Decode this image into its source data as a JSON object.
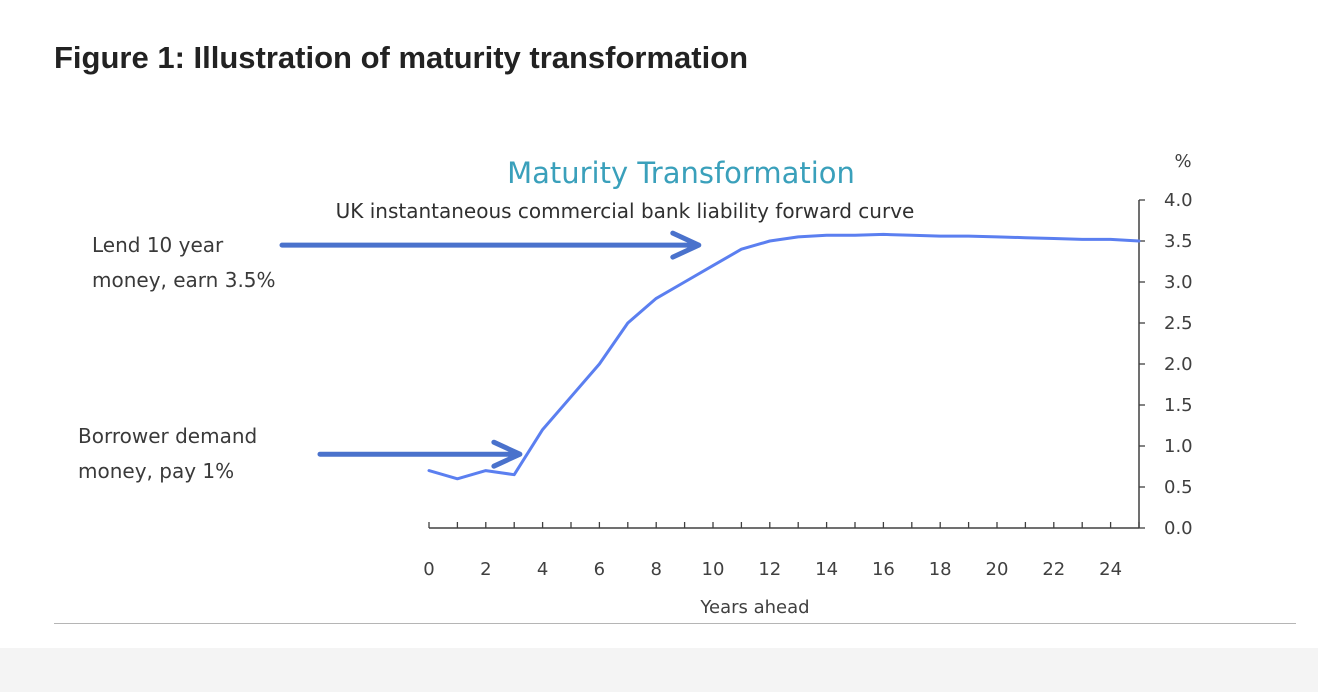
{
  "figure": {
    "title": "Figure 1: Illustration of maturity transformation"
  },
  "colors": {
    "line": "#5b7ff0",
    "arrow": "#4a72cc",
    "chart_title": "#3aa0bb",
    "axis": "#404040",
    "rule": "#b5b5b5"
  },
  "chart_data": {
    "type": "line",
    "title": "Maturity Transformation",
    "subtitle": "UK instantaneous commercial bank liability forward curve",
    "xlabel": "Years ahead",
    "ylabel": "%",
    "xlim": [
      0,
      25
    ],
    "ylim": [
      0,
      4
    ],
    "x_ticks": [
      0,
      2,
      4,
      6,
      8,
      10,
      12,
      14,
      16,
      18,
      20,
      22,
      24
    ],
    "x_tick_labels": [
      "0",
      "2",
      "4",
      "6",
      "8",
      "10",
      "12",
      "14",
      "16",
      "18",
      "20",
      "22",
      "24"
    ],
    "y_ticks": [
      0,
      0.5,
      1,
      1.5,
      2,
      2.5,
      3,
      3.5,
      4
    ],
    "y_tick_labels": [
      "0.0",
      "0.5",
      "1.0",
      "1.5",
      "2.0",
      "2.5",
      "3.0",
      "3.5",
      "4.0"
    ],
    "y_axis_side": "right",
    "grid": false,
    "series": [
      {
        "x": [
          0,
          1,
          2,
          3,
          4,
          5,
          6,
          7,
          8,
          9,
          10,
          11,
          12,
          13,
          14,
          15,
          16,
          17,
          18,
          19,
          20,
          21,
          22,
          23,
          24,
          25
        ],
        "y": [
          0.7,
          0.6,
          0.7,
          0.65,
          1.2,
          1.6,
          2.0,
          2.5,
          2.8,
          3.0,
          3.2,
          3.4,
          3.5,
          3.55,
          3.57,
          3.57,
          3.58,
          3.57,
          3.56,
          3.56,
          3.55,
          3.54,
          3.53,
          3.52,
          3.52,
          3.5
        ]
      }
    ],
    "annotations": [
      {
        "lines": [
          "Lend 10 year",
          "money, earn 3.5%"
        ],
        "arrow_to": {
          "x": 9.5,
          "y": 3.45
        }
      },
      {
        "lines": [
          "Borrower demand",
          "money, pay 1%"
        ],
        "arrow_to": {
          "x": 3.2,
          "y": 0.9
        }
      }
    ]
  }
}
